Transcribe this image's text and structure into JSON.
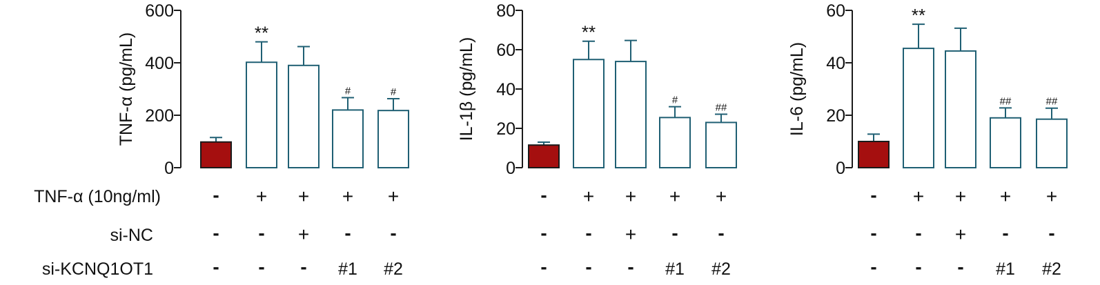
{
  "colors": {
    "axis": "#1a1a1a",
    "bar_edge": "#1f5f73",
    "control_fill": "#a50f0f",
    "open_fill": "#ffffff"
  },
  "conditions": {
    "rows": [
      {
        "label": "TNF-α (10ng/ml)",
        "values": [
          "-",
          "+",
          "+",
          "+",
          "+"
        ]
      },
      {
        "label": "si-NC",
        "values": [
          "-",
          "-",
          "+",
          "-",
          "-"
        ]
      },
      {
        "label": "si-KCNQ1OT1",
        "values": [
          "-",
          "-",
          "-",
          "#1",
          "#2"
        ]
      }
    ]
  },
  "chart_data": [
    {
      "type": "bar",
      "ylabel": "TNF-α (pg/mL)",
      "ylim": [
        0,
        600
      ],
      "yticks": [
        "0",
        "200",
        "400",
        "600"
      ],
      "categories": [
        "Control",
        "TNF-α",
        "TNF-α + si-NC",
        "TNF-α + si-KCNQ1OT1 #1",
        "TNF-α + si-KCNQ1OT1 #2"
      ],
      "values": [
        98,
        402,
        390,
        220,
        218
      ],
      "errors": [
        17,
        78,
        72,
        47,
        45
      ],
      "annotations": [
        "",
        "**",
        "",
        "#",
        "#"
      ]
    },
    {
      "type": "bar",
      "ylabel": "IL-1β (pg/mL)",
      "ylim": [
        0,
        80
      ],
      "yticks": [
        "0",
        "20",
        "40",
        "60",
        "80"
      ],
      "categories": [
        "Control",
        "TNF-α",
        "TNF-α + si-NC",
        "TNF-α + si-KCNQ1OT1 #1",
        "TNF-α + si-KCNQ1OT1 #2"
      ],
      "values": [
        11.5,
        55,
        54,
        25.5,
        23
      ],
      "errors": [
        1.5,
        9.3,
        10.7,
        5.5,
        4.2
      ],
      "annotations": [
        "",
        "**",
        "",
        "#",
        "##"
      ]
    },
    {
      "type": "bar",
      "ylabel": "IL-6 (pg/mL)",
      "ylim": [
        0,
        60
      ],
      "yticks": [
        "0",
        "20",
        "40",
        "60"
      ],
      "categories": [
        "Control",
        "TNF-α",
        "TNF-α + si-NC",
        "TNF-α + si-KCNQ1OT1 #1",
        "TNF-α + si-KCNQ1OT1 #2"
      ],
      "values": [
        10,
        45.5,
        44.5,
        19,
        18.5
      ],
      "errors": [
        2.8,
        9.2,
        8.7,
        3.8,
        4.2
      ],
      "annotations": [
        "",
        "**",
        "",
        "##",
        "##"
      ]
    }
  ]
}
